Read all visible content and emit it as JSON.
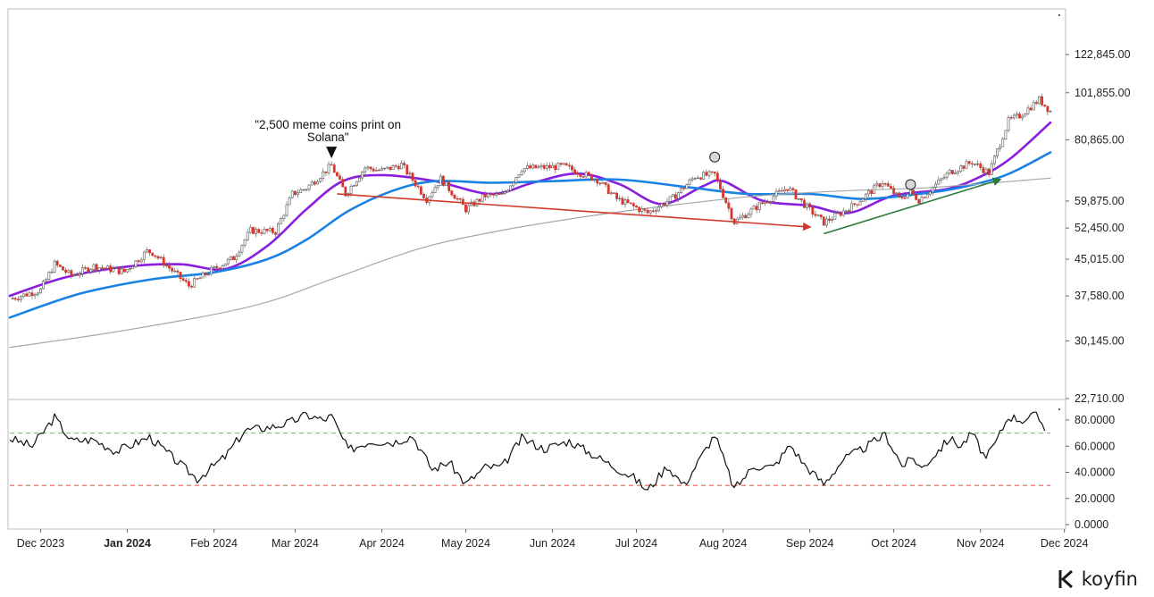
{
  "brand": {
    "name": "koyfin"
  },
  "chart_data": [
    {
      "type": "candlestick",
      "name": "",
      "y_ticks": [
        "122,845.00",
        "101,855.00",
        "80,865.00",
        "59,875.00",
        "52,450.00",
        "45,015.00",
        "37,580.00",
        "30,145.00",
        "22,710.00"
      ],
      "ylim": [
        22710,
        142000
      ],
      "y_scale": "log",
      "x_ticks": [
        {
          "label": "Dec 2023",
          "date": "2023-12-01",
          "bold": false
        },
        {
          "label": "Jan 2024",
          "date": "2024-01-01",
          "bold": true
        },
        {
          "label": "Feb 2024",
          "date": "2024-02-01",
          "bold": false
        },
        {
          "label": "Mar 2024",
          "date": "2024-03-01",
          "bold": false
        },
        {
          "label": "Apr 2024",
          "date": "2024-04-01",
          "bold": false
        },
        {
          "label": "May 2024",
          "date": "2024-05-01",
          "bold": false
        },
        {
          "label": "Jun 2024",
          "date": "2024-06-01",
          "bold": false
        },
        {
          "label": "Jul 2024",
          "date": "2024-07-01",
          "bold": false
        },
        {
          "label": "Aug 2024",
          "date": "2024-08-01",
          "bold": false
        },
        {
          "label": "Sep 2024",
          "date": "2024-09-01",
          "bold": false
        },
        {
          "label": "Oct 2024",
          "date": "2024-10-01",
          "bold": false
        },
        {
          "label": "Nov 2024",
          "date": "2024-11-01",
          "bold": false
        },
        {
          "label": "Dec 2024",
          "date": "2024-12-01",
          "bold": false
        }
      ],
      "xlim": [
        "2023-11-20",
        "2024-11-26"
      ],
      "close_anchors": [
        [
          "2023-11-20",
          37000
        ],
        [
          "2023-12-01",
          38700
        ],
        [
          "2023-12-06",
          44000
        ],
        [
          "2023-12-12",
          41500
        ],
        [
          "2023-12-20",
          43500
        ],
        [
          "2023-12-31",
          42300
        ],
        [
          "2024-01-08",
          46800
        ],
        [
          "2024-01-10",
          46500
        ],
        [
          "2024-01-23",
          39500
        ],
        [
          "2024-01-31",
          42600
        ],
        [
          "2024-02-08",
          45300
        ],
        [
          "2024-02-14",
          51800
        ],
        [
          "2024-02-23",
          51500
        ],
        [
          "2024-02-29",
          62000
        ],
        [
          "2024-03-05",
          63800
        ],
        [
          "2024-03-14",
          71300
        ],
        [
          "2024-03-19",
          62000
        ],
        [
          "2024-03-26",
          70500
        ],
        [
          "2024-04-01",
          69500
        ],
        [
          "2024-04-08",
          71600
        ],
        [
          "2024-04-17",
          60500
        ],
        [
          "2024-04-22",
          66800
        ],
        [
          "2024-05-01",
          57500
        ],
        [
          "2024-05-08",
          61500
        ],
        [
          "2024-05-14",
          61500
        ],
        [
          "2024-05-21",
          70200
        ],
        [
          "2024-06-05",
          71000
        ],
        [
          "2024-06-17",
          66500
        ],
        [
          "2024-06-24",
          60500
        ],
        [
          "2024-07-05",
          56500
        ],
        [
          "2024-07-14",
          60800
        ],
        [
          "2024-07-22",
          67600
        ],
        [
          "2024-07-29",
          68200
        ],
        [
          "2024-08-05",
          54000
        ],
        [
          "2024-08-14",
          58700
        ],
        [
          "2024-08-24",
          64000
        ],
        [
          "2024-09-01",
          57300
        ],
        [
          "2024-09-06",
          53900
        ],
        [
          "2024-09-16",
          58300
        ],
        [
          "2024-09-27",
          65800
        ],
        [
          "2024-10-03",
          60600
        ],
        [
          "2024-10-07",
          62500
        ],
        [
          "2024-10-10",
          60200
        ],
        [
          "2024-10-21",
          69000
        ],
        [
          "2024-10-29",
          72500
        ],
        [
          "2024-11-04",
          68700
        ],
        [
          "2024-11-11",
          88700
        ],
        [
          "2024-11-15",
          91000
        ],
        [
          "2024-11-22",
          98500
        ],
        [
          "2024-11-26",
          93000
        ]
      ],
      "moving_averages": [
        {
          "color": "#8a1ee0",
          "points": [
            [
              "2023-11-20",
              37600
            ],
            [
              "2023-12-10",
              41200
            ],
            [
              "2024-01-01",
              43400
            ],
            [
              "2024-01-20",
              43900
            ],
            [
              "2024-02-05",
              42900
            ],
            [
              "2024-02-20",
              48000
            ],
            [
              "2024-03-05",
              57500
            ],
            [
              "2024-03-18",
              66000
            ],
            [
              "2024-04-01",
              68000
            ],
            [
              "2024-04-20",
              66000
            ],
            [
              "2024-05-10",
              62000
            ],
            [
              "2024-05-25",
              65500
            ],
            [
              "2024-06-10",
              68500
            ],
            [
              "2024-06-25",
              65000
            ],
            [
              "2024-07-10",
              59000
            ],
            [
              "2024-07-25",
              64500
            ],
            [
              "2024-08-01",
              66000
            ],
            [
              "2024-08-15",
              60000
            ],
            [
              "2024-09-01",
              58500
            ],
            [
              "2024-09-15",
              56500
            ],
            [
              "2024-10-01",
              61500
            ],
            [
              "2024-10-20",
              63500
            ],
            [
              "2024-11-01",
              67500
            ],
            [
              "2024-11-12",
              74000
            ],
            [
              "2024-11-26",
              88000
            ]
          ]
        },
        {
          "color": "#1a82e2",
          "points": [
            [
              "2023-11-20",
              33800
            ],
            [
              "2023-12-15",
              38000
            ],
            [
              "2024-01-10",
              40800
            ],
            [
              "2024-02-01",
              42200
            ],
            [
              "2024-02-20",
              45000
            ],
            [
              "2024-03-05",
              49500
            ],
            [
              "2024-03-20",
              57000
            ],
            [
              "2024-04-05",
              63000
            ],
            [
              "2024-04-20",
              66000
            ],
            [
              "2024-05-10",
              65500
            ],
            [
              "2024-06-01",
              66000
            ],
            [
              "2024-06-25",
              66500
            ],
            [
              "2024-07-20",
              64000
            ],
            [
              "2024-08-10",
              62000
            ],
            [
              "2024-09-01",
              62000
            ],
            [
              "2024-09-20",
              60500
            ],
            [
              "2024-10-10",
              62000
            ],
            [
              "2024-10-25",
              64000
            ],
            [
              "2024-11-10",
              68000
            ],
            [
              "2024-11-26",
              76000
            ]
          ]
        },
        {
          "color": "#a6a6a6",
          "points": [
            [
              "2023-11-20",
              29200
            ],
            [
              "2024-01-01",
              31800
            ],
            [
              "2024-02-15",
              35800
            ],
            [
              "2024-03-15",
              41000
            ],
            [
              "2024-04-15",
              47500
            ],
            [
              "2024-05-15",
              52000
            ],
            [
              "2024-06-15",
              55700
            ],
            [
              "2024-07-15",
              58800
            ],
            [
              "2024-08-15",
              61500
            ],
            [
              "2024-09-15",
              63000
            ],
            [
              "2024-10-15",
              64000
            ],
            [
              "2024-11-26",
              67000
            ]
          ]
        }
      ],
      "annotations": [
        {
          "text": "\"2,500 meme coins print on Solana\"",
          "lines": [
            "\"2,500 meme coins print on",
            "Solana\""
          ],
          "date": "2024-03-14",
          "value": 71300,
          "arrow_color": "#111111"
        }
      ],
      "trendlines": [
        {
          "color": "#d03a2c",
          "from": [
            "2024-03-16",
            62000
          ],
          "to": [
            "2024-09-01",
            52700
          ]
        },
        {
          "color": "#2a7a3a",
          "from": [
            "2024-09-06",
            51000
          ],
          "to": [
            "2024-11-08",
            66500
          ]
        }
      ],
      "markers": [
        {
          "date": "2024-07-29",
          "value": 73000
        },
        {
          "date": "2024-10-07",
          "value": 63800
        }
      ],
      "colors": {
        "up": "#ffffff",
        "down": "#d9352b",
        "wick": "#7a7a7a"
      }
    },
    {
      "type": "line",
      "name": "",
      "y_ticks": [
        "80.0000",
        "60.0000",
        "40.0000",
        "20.0000",
        "0.0000"
      ],
      "ylim": [
        0,
        80
      ],
      "reference_lines": [
        {
          "value": 70,
          "color": "#6bbf59"
        },
        {
          "value": 30,
          "color": "#e0463c"
        }
      ],
      "anchors": [
        [
          "2023-11-20",
          66
        ],
        [
          "2023-11-28",
          60
        ],
        [
          "2023-12-06",
          82
        ],
        [
          "2023-12-12",
          64
        ],
        [
          "2023-12-20",
          65
        ],
        [
          "2023-12-28",
          56
        ],
        [
          "2024-01-09",
          67
        ],
        [
          "2024-01-20",
          46
        ],
        [
          "2024-01-26",
          35
        ],
        [
          "2024-02-05",
          52
        ],
        [
          "2024-02-12",
          72
        ],
        [
          "2024-02-22",
          75
        ],
        [
          "2024-02-28",
          78
        ],
        [
          "2024-03-05",
          84
        ],
        [
          "2024-03-11",
          80
        ],
        [
          "2024-03-14",
          83
        ],
        [
          "2024-03-20",
          57
        ],
        [
          "2024-03-28",
          64
        ],
        [
          "2024-04-05",
          63
        ],
        [
          "2024-04-12",
          68
        ],
        [
          "2024-04-19",
          42
        ],
        [
          "2024-04-25",
          48
        ],
        [
          "2024-05-01",
          31
        ],
        [
          "2024-05-08",
          44
        ],
        [
          "2024-05-14",
          44
        ],
        [
          "2024-05-21",
          66
        ],
        [
          "2024-05-29",
          58
        ],
        [
          "2024-06-07",
          64
        ],
        [
          "2024-06-20",
          48
        ],
        [
          "2024-06-30",
          36
        ],
        [
          "2024-07-05",
          26
        ],
        [
          "2024-07-12",
          45
        ],
        [
          "2024-07-18",
          30
        ],
        [
          "2024-07-29",
          69
        ],
        [
          "2024-08-05",
          27
        ],
        [
          "2024-08-12",
          45
        ],
        [
          "2024-08-19",
          44
        ],
        [
          "2024-08-25",
          61
        ],
        [
          "2024-08-30",
          46
        ],
        [
          "2024-09-06",
          31
        ],
        [
          "2024-09-13",
          50
        ],
        [
          "2024-09-20",
          58
        ],
        [
          "2024-09-28",
          69
        ],
        [
          "2024-10-04",
          45
        ],
        [
          "2024-10-08",
          51
        ],
        [
          "2024-10-11",
          43
        ],
        [
          "2024-10-21",
          66
        ],
        [
          "2024-10-25",
          60
        ],
        [
          "2024-10-29",
          70
        ],
        [
          "2024-11-03",
          50
        ],
        [
          "2024-11-07",
          65
        ],
        [
          "2024-11-11",
          83
        ],
        [
          "2024-11-16",
          80
        ],
        [
          "2024-11-21",
          84
        ],
        [
          "2024-11-24",
          74
        ]
      ]
    }
  ]
}
